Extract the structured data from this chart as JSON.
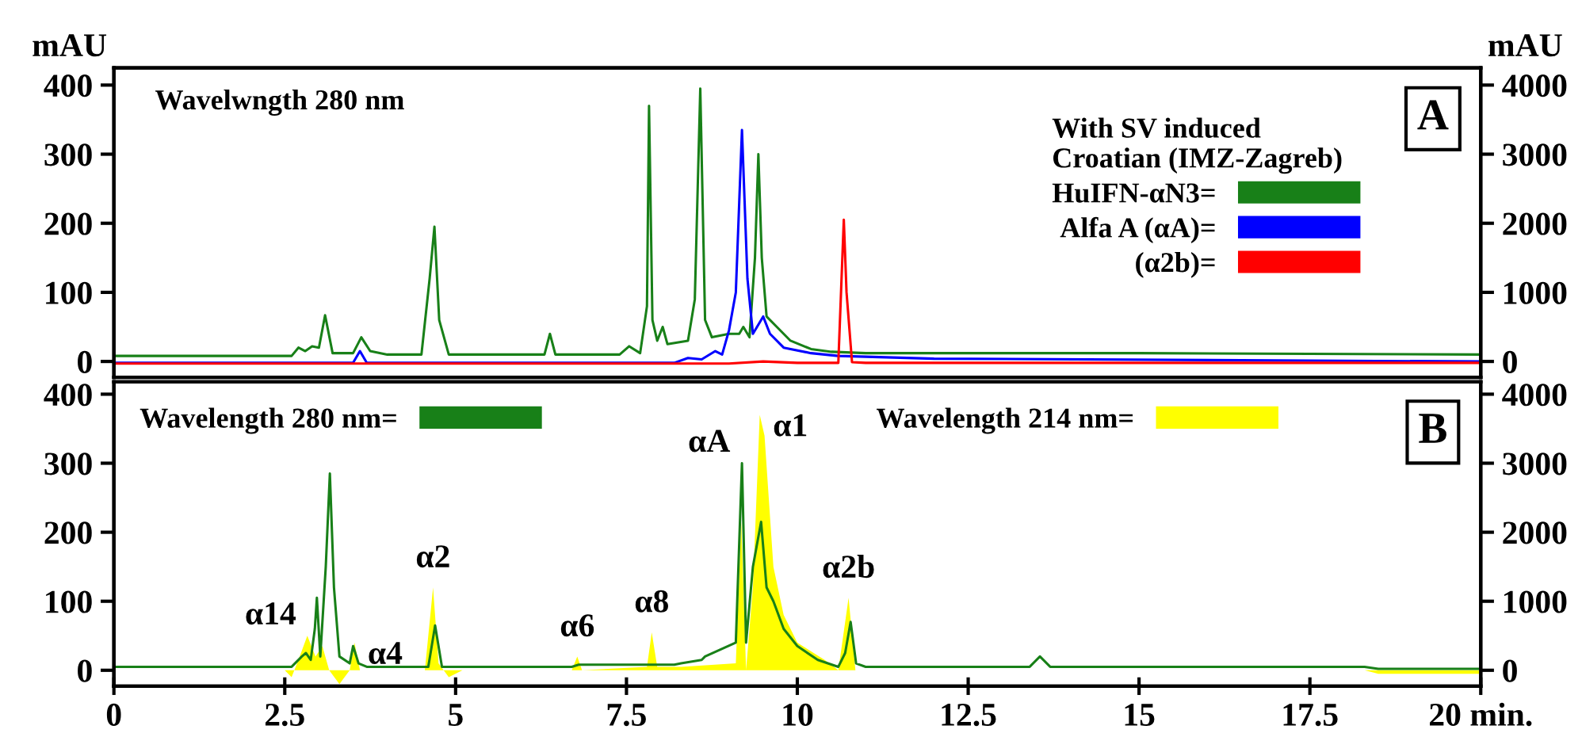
{
  "chart_data": [
    {
      "type": "line",
      "ylabel": "mAU",
      "y2label": "mAU",
      "legend_title": "With SV induced\nCroatian (IMZ-Zagreb)",
      "legend": "right",
      "tick_labels": "y",
      "annotations": [
        "Wavelwngth 280 nm",
        "A"
      ],
      "xlim": [
        0,
        20
      ],
      "ylim": [
        -23,
        425
      ],
      "yticks": [
        0,
        100,
        200,
        300,
        400
      ],
      "y2lim": [
        -230,
        4250
      ],
      "y2ticks": [
        0,
        1000,
        2000,
        3000,
        4000
      ],
      "series": [
        {
          "name": "HuIFN-αN3=",
          "color": "#188018",
          "x": [
            0,
            2.6,
            2.7,
            2.8,
            2.9,
            3.0,
            3.09,
            3.2,
            3.5,
            3.62,
            3.75,
            4.0,
            4.5,
            4.62,
            4.69,
            4.76,
            4.9,
            6.3,
            6.38,
            6.46,
            7.4,
            7.54,
            7.7,
            7.8,
            7.83,
            7.88,
            7.95,
            8.03,
            8.1,
            8.4,
            8.5,
            8.58,
            8.65,
            8.75,
            9.0,
            9.15,
            9.21,
            9.3,
            9.38,
            9.43,
            9.48,
            9.55,
            9.7,
            9.9,
            10.2,
            10.5,
            11,
            15,
            20
          ],
          "values": [
            8,
            8,
            20,
            15,
            22,
            20,
            67,
            12,
            12,
            35,
            15,
            10,
            10,
            120,
            195,
            60,
            10,
            10,
            40,
            10,
            10,
            22,
            12,
            80,
            370,
            60,
            30,
            50,
            25,
            30,
            90,
            395,
            60,
            35,
            40,
            40,
            50,
            35,
            150,
            300,
            150,
            65,
            50,
            30,
            18,
            14,
            12,
            12,
            10
          ]
        },
        {
          "name": "Alfa A (αA)=",
          "color": "#0000ff",
          "x": [
            0,
            3.5,
            3.6,
            3.7,
            8.2,
            8.4,
            8.6,
            8.8,
            8.9,
            9.0,
            9.1,
            9.19,
            9.27,
            9.35,
            9.5,
            9.6,
            9.8,
            10.2,
            10.6,
            12,
            20
          ],
          "values": [
            -2,
            -2,
            15,
            -2,
            -2,
            5,
            3,
            15,
            10,
            45,
            100,
            335,
            120,
            40,
            65,
            40,
            20,
            12,
            8,
            4,
            0
          ]
        },
        {
          "name": "(α2b)=",
          "color": "#ff0000",
          "x": [
            0,
            9.0,
            9.5,
            10.0,
            10.6,
            10.68,
            10.72,
            10.8,
            11,
            20
          ],
          "values": [
            -3,
            -3,
            0,
            -2,
            -2,
            205,
            100,
            -1,
            -2,
            -2
          ]
        }
      ]
    },
    {
      "type": "line",
      "legend": "top",
      "annotations": [
        "B",
        {
          "text": "α14",
          "x": 2.83,
          "y": 50
        },
        {
          "text": "α4",
          "x": 3.52,
          "y": 40
        },
        {
          "text": "α2",
          "x": 4.67,
          "y": 120
        },
        {
          "text": "α6",
          "x": 6.78,
          "y": 20
        },
        {
          "text": "α8",
          "x": 7.87,
          "y": 55
        },
        {
          "text": "αA",
          "x": 9.18,
          "y": 300
        },
        {
          "text": "α1",
          "x": 9.45,
          "y": 370
        },
        {
          "text": "α2b",
          "x": 10.75,
          "y": 105
        }
      ],
      "xlim": [
        0,
        20
      ],
      "xticks": [
        0,
        2.5,
        5,
        7.5,
        10,
        12.5,
        15,
        17.5,
        {
          "value": 20,
          "label": "20 min."
        }
      ],
      "ylim": [
        -23,
        418
      ],
      "yticks": [
        0,
        100,
        200,
        300,
        400
      ],
      "y2lim": [
        -230,
        4180
      ],
      "y2ticks": [
        0,
        1000,
        2000,
        3000,
        4000
      ],
      "series": [
        {
          "name": "Wavelength 280 nm=",
          "color": "#188018",
          "x": [
            0,
            2.6,
            2.75,
            2.81,
            2.88,
            2.94,
            2.97,
            3.02,
            3.1,
            3.16,
            3.22,
            3.3,
            3.45,
            3.5,
            3.58,
            3.7,
            4.6,
            4.7,
            4.8,
            6.7,
            6.8,
            8.2,
            8.3,
            8.6,
            8.65,
            9.1,
            9.19,
            9.25,
            9.35,
            9.47,
            9.55,
            9.65,
            9.8,
            10.0,
            10.3,
            10.6,
            10.7,
            10.78,
            10.86,
            11,
            13.4,
            13.55,
            13.7,
            18.3,
            18.5,
            20
          ],
          "values": [
            5,
            5,
            20,
            25,
            15,
            60,
            105,
            20,
            150,
            285,
            120,
            20,
            10,
            35,
            10,
            5,
            5,
            65,
            5,
            5,
            8,
            8,
            10,
            15,
            20,
            40,
            300,
            40,
            150,
            215,
            120,
            100,
            60,
            35,
            15,
            5,
            25,
            70,
            10,
            5,
            5,
            20,
            5,
            5,
            2,
            2
          ]
        },
        {
          "name": "Wavelength 214 nm=",
          "type": "area",
          "color": "#ffff00",
          "x": [
            0,
            2.5,
            2.6,
            2.7,
            2.83,
            2.95,
            3.05,
            3.15,
            3.3,
            3.45,
            3.52,
            3.6,
            4.55,
            4.67,
            4.75,
            4.9,
            5.1,
            6.7,
            6.78,
            6.85,
            7.8,
            7.87,
            7.95,
            8.3,
            9.1,
            9.18,
            9.25,
            9.35,
            9.45,
            9.52,
            9.65,
            9.8,
            10.0,
            10.4,
            10.6,
            10.75,
            10.85,
            18.3,
            18.5,
            20
          ],
          "values": [
            0,
            0,
            -10,
            15,
            50,
            20,
            35,
            0,
            -20,
            0,
            40,
            0,
            0,
            120,
            10,
            -10,
            0,
            0,
            20,
            0,
            5,
            55,
            5,
            5,
            10,
            215,
            0,
            120,
            370,
            340,
            150,
            80,
            40,
            15,
            0,
            105,
            0,
            0,
            -5,
            -5
          ]
        }
      ]
    }
  ]
}
